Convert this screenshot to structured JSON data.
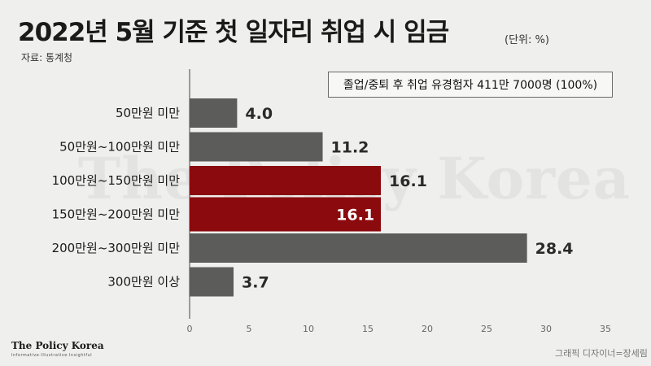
{
  "header": {
    "title": "2022년 5월 기준 첫 일자리 취업 시 임금",
    "unit": "(단위: %)",
    "source": "자료: 통계청"
  },
  "watermark": "The Policy Korea",
  "legend": {
    "text": "졸업/중퇴 후 취업 유경험자 411만 7000명 (100%)"
  },
  "chart_data": {
    "type": "bar",
    "orientation": "horizontal",
    "categories": [
      "50만원 미만",
      "50만원~100만원 미만",
      "100만원~150만원 미만",
      "150만원~200만원 미만",
      "200만원~300만원 미만",
      "300만원 이상"
    ],
    "values": [
      4.0,
      11.2,
      16.1,
      16.1,
      28.4,
      3.7
    ],
    "value_labels": [
      "4.0",
      "11.2",
      "16.1",
      "16.1",
      "28.4",
      "3.7"
    ],
    "highlight": [
      false,
      false,
      true,
      true,
      false,
      false
    ],
    "xlim": [
      0,
      35
    ],
    "xticks": [
      0,
      5,
      10,
      15,
      20,
      25,
      30,
      35
    ],
    "grid": false,
    "colors": {
      "default": "#5c5c5a",
      "highlight": "#8b0a0d",
      "highlight_emphasis": "#7f0508"
    }
  },
  "footer": {
    "logo": "The Policy Korea",
    "tagline": "Informative·Illustrative·Insightful",
    "credit": "그래픽 디자이너=장세림"
  }
}
